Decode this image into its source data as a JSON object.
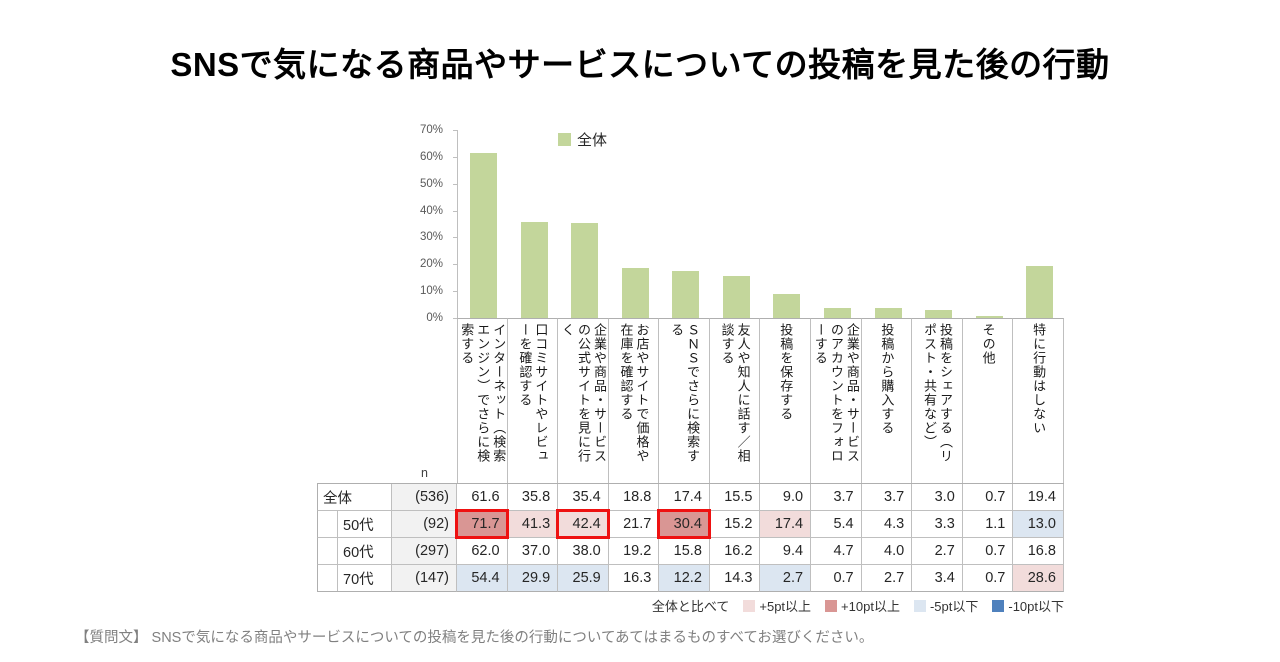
{
  "title": "SNSで気になる商品やサービスについての投稿を見た後の行動",
  "chart_data": {
    "type": "bar",
    "title": "SNSで気になる商品やサービスについての投稿を見た後の行動",
    "legend_label": "全体",
    "legend_position": "top-inside",
    "grid": false,
    "bar_color": "#C3D69B",
    "categories": [
      "インターネット（検索エンジン）でさらに検索する",
      "口コミサイトやレビューを確認する",
      "企業や商品・サービスの公式サイトを見に行く",
      "お店やサイトで価格や在庫を確認する",
      "ＳＮＳでさらに検索する",
      "友人や知人に話す／相談する",
      "投稿を保存する",
      "企業や商品・サービスのアカウントをフォローする",
      "投稿から購入する",
      "投稿をシェアする（リポスト・共有など）",
      "その他",
      "特に行動はしない"
    ],
    "values": [
      61.6,
      35.8,
      35.4,
      18.8,
      17.4,
      15.5,
      9.0,
      3.7,
      3.7,
      3.0,
      0.7,
      19.4
    ],
    "ylabel": "%",
    "ylim": [
      0,
      70
    ],
    "yticks": [
      "0%",
      "10%",
      "20%",
      "30%",
      "40%",
      "50%",
      "60%",
      "70%"
    ]
  },
  "table": {
    "n_label": "n",
    "rows": [
      {
        "label": "全体",
        "n": "(536)",
        "indent": false,
        "values": [
          "61.6",
          "35.8",
          "35.4",
          "18.8",
          "17.4",
          "15.5",
          "9.0",
          "3.7",
          "3.7",
          "3.0",
          "0.7",
          "19.4"
        ],
        "marks": [
          "",
          "",
          "",
          "",
          "",
          "",
          "",
          "",
          "",
          "",
          "",
          ""
        ],
        "red_boxes": []
      },
      {
        "label": "50代",
        "n": "(92)",
        "indent": true,
        "values": [
          "71.7",
          "41.3",
          "42.4",
          "21.7",
          "30.4",
          "15.2",
          "17.4",
          "5.4",
          "4.3",
          "3.3",
          "1.1",
          "13.0"
        ],
        "marks": [
          "p10",
          "p5",
          "p5",
          "",
          "p10",
          "",
          "p5",
          "",
          "",
          "",
          "",
          "m5"
        ],
        "red_boxes": [
          0,
          2,
          4
        ]
      },
      {
        "label": "60代",
        "n": "(297)",
        "indent": true,
        "values": [
          "62.0",
          "37.0",
          "38.0",
          "19.2",
          "15.8",
          "16.2",
          "9.4",
          "4.7",
          "4.0",
          "2.7",
          "0.7",
          "16.8"
        ],
        "marks": [
          "",
          "",
          "",
          "",
          "",
          "",
          "",
          "",
          "",
          "",
          "",
          ""
        ],
        "red_boxes": []
      },
      {
        "label": "70代",
        "n": "(147)",
        "indent": true,
        "values": [
          "54.4",
          "29.9",
          "25.9",
          "16.3",
          "12.2",
          "14.3",
          "2.7",
          "0.7",
          "2.7",
          "3.4",
          "0.7",
          "28.6"
        ],
        "marks": [
          "m5",
          "m5",
          "m5",
          "",
          "m5",
          "",
          "m5",
          "",
          "",
          "",
          "",
          "p5"
        ],
        "red_boxes": []
      }
    ]
  },
  "compare_legend": {
    "prefix": "全体と比べて",
    "items": [
      {
        "label": "+5pt以上",
        "color": "#F2DCDB"
      },
      {
        "label": "+10pt以上",
        "color": "#D99694"
      },
      {
        "label": "-5pt以下",
        "color": "#DCE6F1"
      },
      {
        "label": "-10pt以下",
        "color": "#4F81BD"
      }
    ]
  },
  "footnote": "【質問文】 SNSで気になる商品やサービスについての投稿を見た後の行動についてあてはまるものすべてお選びください。",
  "colors": {
    "bar": "#C3D69B",
    "p5": "#F2DCDB",
    "p10": "#D99694",
    "m5": "#DCE6F1",
    "m10": "#4F81BD",
    "red_box": "#EE1111",
    "axis": "#BFBFBF"
  }
}
